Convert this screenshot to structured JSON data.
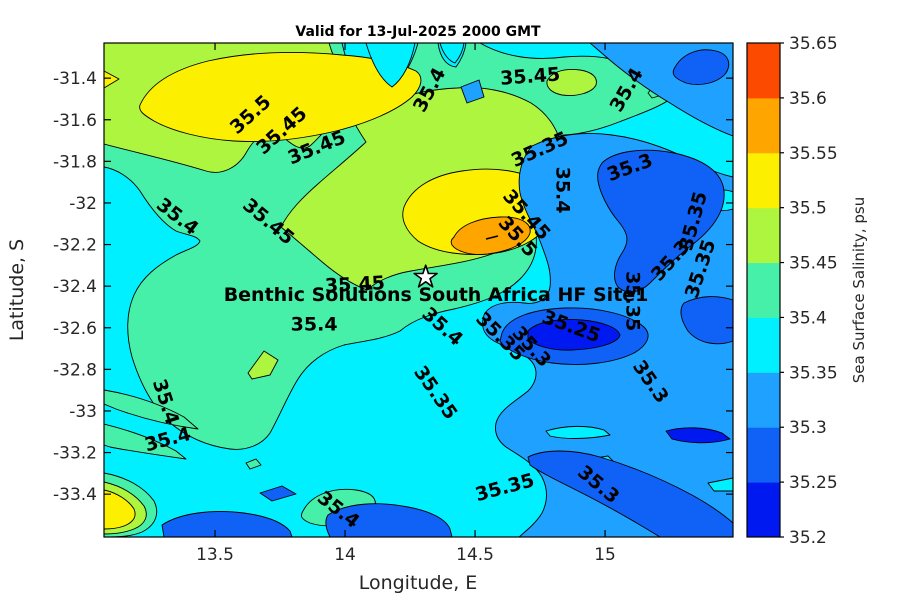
{
  "chart_data": {
    "type": "filled_contour_map",
    "title": "Valid for 13-Jul-2025 2000 GMT",
    "xlabel": "Longitude, E",
    "ylabel": "Latitude, S",
    "xlim": [
      13.073,
      15.492
    ],
    "ylim_top_to_bottom": [
      -31.231,
      -33.606
    ],
    "grid": false,
    "xticks": [
      {
        "value": 13.5,
        "label": "13.5"
      },
      {
        "value": 14,
        "label": "14"
      },
      {
        "value": 14.5,
        "label": "14.5"
      },
      {
        "value": 15,
        "label": "15"
      }
    ],
    "yticks": [
      {
        "value": -31.4,
        "label": "-31.4"
      },
      {
        "value": -31.6,
        "label": "-31.6"
      },
      {
        "value": -31.8,
        "label": "-31.8"
      },
      {
        "value": -32,
        "label": "-32"
      },
      {
        "value": -32.2,
        "label": "-32.2"
      },
      {
        "value": -32.4,
        "label": "-32.4"
      },
      {
        "value": -32.6,
        "label": "-32.6"
      },
      {
        "value": -32.8,
        "label": "-32.8"
      },
      {
        "value": -33,
        "label": "-33"
      },
      {
        "value": -33.2,
        "label": "-33.2"
      },
      {
        "value": -33.4,
        "label": "-33.4"
      }
    ],
    "contour_levels": [
      35.2,
      35.25,
      35.3,
      35.35,
      35.4,
      35.45,
      35.5,
      35.55,
      35.6,
      35.65
    ],
    "colorbar": {
      "label": "Sea Surface Salinity, psu",
      "orientation": "vertical",
      "position": "right",
      "ticks": [
        "35.2",
        "35.25",
        "35.3",
        "35.35",
        "35.4",
        "35.45",
        "35.5",
        "35.55",
        "35.6",
        "35.65"
      ],
      "colors": [
        "#0019F0",
        "#0F62F5",
        "#1FA2FF",
        "#00F0FF",
        "#47F0A8",
        "#ADF53F",
        "#FCF000",
        "#FFA500",
        "#FC4A00"
      ]
    },
    "site_marker": {
      "shape": "star",
      "fill": "#ffffff",
      "lon": 14.31,
      "lat": -32.357,
      "label": "Benthic Solutions South Africa HF Site1"
    },
    "annotation_position": {
      "lon": 14.35,
      "lat": -32.438
    },
    "contour_labels": [
      {
        "t": "35.5",
        "lon": 13.638,
        "lat": -31.578,
        "r": -42
      },
      {
        "t": "35.45",
        "lon": 13.758,
        "lat": -31.655,
        "r": -42
      },
      {
        "t": "35.45",
        "lon": 13.892,
        "lat": -31.737,
        "r": -22
      },
      {
        "t": "35.4",
        "lon": 14.327,
        "lat": -31.458,
        "r": -62
      },
      {
        "t": "35.45",
        "lon": 14.712,
        "lat": -31.395,
        "r": -4
      },
      {
        "t": "35.4",
        "lon": 15.085,
        "lat": -31.458,
        "r": -60
      },
      {
        "t": "35.35",
        "lon": 14.75,
        "lat": -31.746,
        "r": -24
      },
      {
        "t": "35.4",
        "lon": 14.835,
        "lat": -31.938,
        "r": 90
      },
      {
        "t": "35.45",
        "lon": 14.696,
        "lat": -32.059,
        "r": 48
      },
      {
        "t": "35.5",
        "lon": 14.662,
        "lat": -32.164,
        "r": 48
      },
      {
        "t": "35.3",
        "lon": 15.096,
        "lat": -31.833,
        "r": -20
      },
      {
        "t": "35.35",
        "lon": 15.342,
        "lat": -32.088,
        "r": -75
      },
      {
        "t": "35.3",
        "lon": 15.254,
        "lat": -32.28,
        "r": -48
      },
      {
        "t": "35.35",
        "lon": 15.369,
        "lat": -32.318,
        "r": -72
      },
      {
        "t": "35.35",
        "lon": 15.104,
        "lat": -32.472,
        "r": 90
      },
      {
        "t": "35.4",
        "lon": 13.354,
        "lat": -32.068,
        "r": 38
      },
      {
        "t": "35.45",
        "lon": 13.704,
        "lat": -32.092,
        "r": 40
      },
      {
        "t": "35.45",
        "lon": 14.038,
        "lat": -32.395,
        "r": -3
      },
      {
        "t": "35.4",
        "lon": 13.881,
        "lat": -32.587,
        "r": 0
      },
      {
        "t": "35.4",
        "lon": 14.373,
        "lat": -32.597,
        "r": 42
      },
      {
        "t": "35.35",
        "lon": 14.596,
        "lat": -32.645,
        "r": 45
      },
      {
        "t": "35.3",
        "lon": 14.715,
        "lat": -32.693,
        "r": 48
      },
      {
        "t": "35.25",
        "lon": 14.869,
        "lat": -32.597,
        "r": 20
      },
      {
        "t": "35.3",
        "lon": 15.173,
        "lat": -32.861,
        "r": 55
      },
      {
        "t": "35.35",
        "lon": 14.346,
        "lat": -32.914,
        "r": 55
      },
      {
        "t": "35.4",
        "lon": 13.308,
        "lat": -32.958,
        "r": 72
      },
      {
        "t": "35.4",
        "lon": 13.319,
        "lat": -33.14,
        "r": -15
      },
      {
        "t": "35.4",
        "lon": 13.973,
        "lat": -33.477,
        "r": 38
      },
      {
        "t": "35.35",
        "lon": 14.615,
        "lat": -33.371,
        "r": -15
      },
      {
        "t": "35.3",
        "lon": 14.973,
        "lat": -33.356,
        "r": 40
      }
    ]
  }
}
